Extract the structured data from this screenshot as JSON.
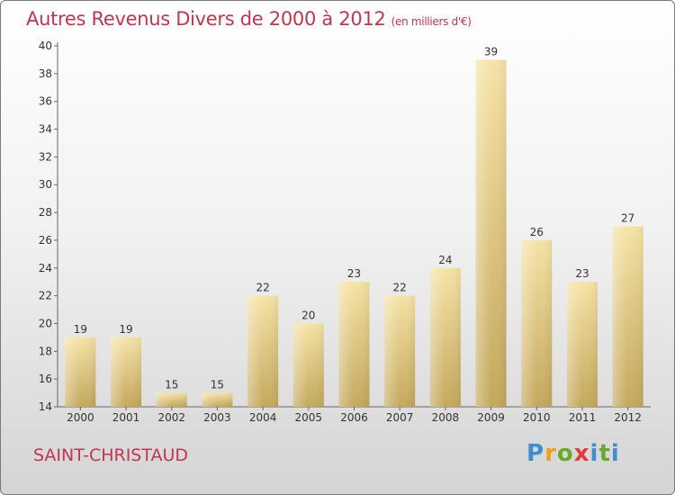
{
  "header": {
    "title": "Autres Revenus Divers de 2000 à 2012",
    "unit": "(en milliers d'€)"
  },
  "footer": {
    "location": "SAINT-CHRISTAUD",
    "brand": "Proxiti"
  },
  "colors": {
    "title": "#c0364f",
    "bar_light": "#f4dd9a",
    "bar_dark": "#c4a85c"
  },
  "chart_data": {
    "type": "bar",
    "title": "Autres Revenus Divers de 2000 à 2012",
    "subtitle": "(en milliers d'€)",
    "categories": [
      "2000",
      "2001",
      "2002",
      "2003",
      "2004",
      "2005",
      "2006",
      "2007",
      "2008",
      "2009",
      "2010",
      "2011",
      "2012"
    ],
    "values": [
      19,
      19,
      15,
      15,
      22,
      20,
      23,
      22,
      24,
      39,
      26,
      23,
      27
    ],
    "ylim": [
      14,
      40
    ],
    "yticks": [
      14,
      16,
      18,
      20,
      22,
      24,
      26,
      28,
      30,
      32,
      34,
      36,
      38,
      40
    ],
    "xlabel": "",
    "ylabel": "",
    "grid": false,
    "data_labels": true
  }
}
